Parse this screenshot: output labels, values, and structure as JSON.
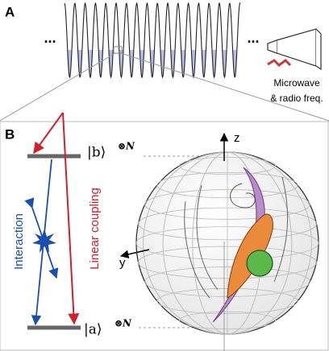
{
  "panels": [
    {
      "label": "A",
      "ellipsis": [
        "...",
        "..."
      ],
      "caption": [
        "Microwave",
        "& radio freq."
      ]
    },
    {
      "label": "B",
      "states": [
        {
          "ket": "|b⟩",
          "power": "⊗N"
        },
        {
          "ket": "|a⟩",
          "power": "⊗N"
        }
      ],
      "arrows": [
        "Interaction",
        "Linear coupling"
      ],
      "axes": [
        "z",
        "y"
      ]
    }
  ]
}
